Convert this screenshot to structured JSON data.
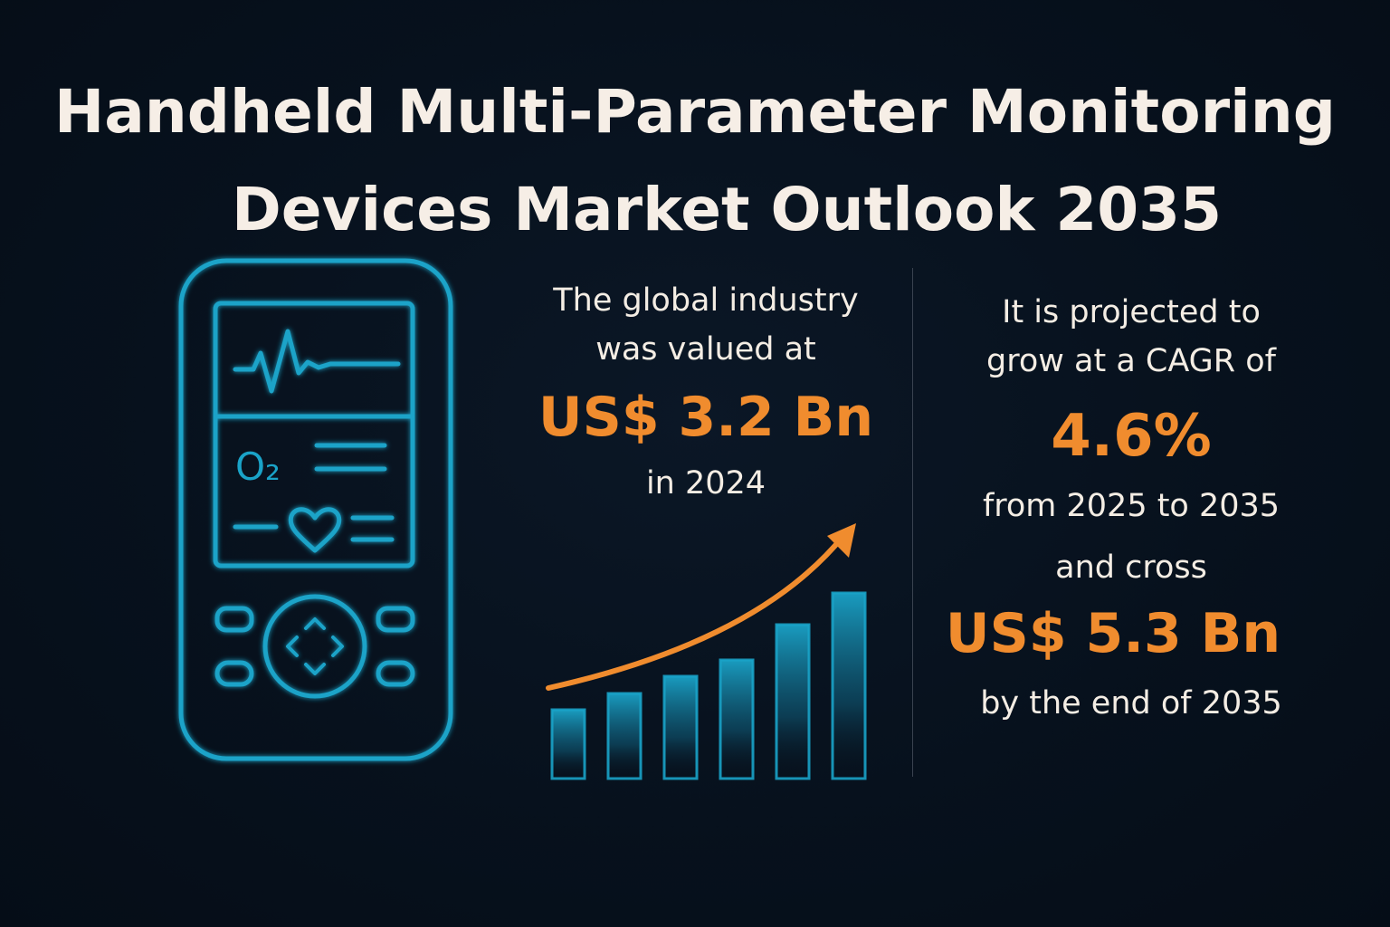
{
  "title": {
    "line1": "Handheld Multi-Parameter Monitoring",
    "line2": "Devices Market Outlook 2035"
  },
  "device": {
    "icon": "handheld-monitor-icon",
    "screen_label": "O₂",
    "accent_color": "#1aa3c8"
  },
  "left_stat": {
    "line1": "The global industry",
    "line2": "was valued at",
    "value": "US$ 3.2 Bn",
    "line3": "in 2024"
  },
  "right_stat": {
    "line1": "It is projected to",
    "line2": "grow at a CAGR of",
    "cagr": "4.6%",
    "line3": "from 2025 to 2035",
    "line4": "and cross",
    "value": "US$ 5.3 Bn",
    "line5": "by the end of 2035"
  },
  "chart": {
    "icon": "growth-bar-chart-icon",
    "arrow_color": "#f08c2e",
    "bar_color": "#1aa3c8",
    "bar_levels": [
      0.37,
      0.46,
      0.55,
      0.64,
      0.83,
      1.0
    ]
  },
  "colors": {
    "background": "#07111d",
    "highlight": "#f08c2e",
    "text": "#f4ede4",
    "accent": "#1aa3c8"
  }
}
